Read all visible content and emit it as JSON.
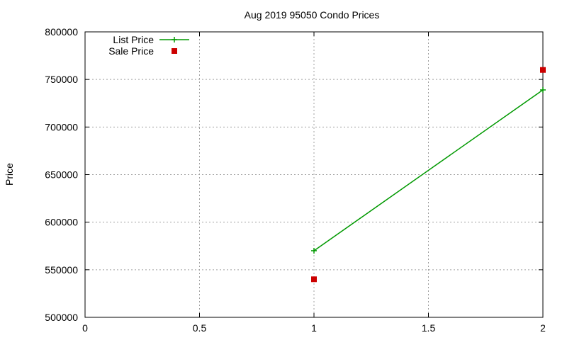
{
  "chart_data": {
    "type": "line",
    "title": "Aug 2019 95050 Condo Prices",
    "xlabel": "",
    "ylabel": "Price",
    "xlim": [
      0,
      2
    ],
    "ylim": [
      500000,
      800000
    ],
    "x_ticks": [
      0,
      0.5,
      1,
      1.5,
      2
    ],
    "x_tick_labels": [
      "0",
      "0.5",
      "1",
      "1.5",
      "2"
    ],
    "y_ticks": [
      500000,
      550000,
      600000,
      650000,
      700000,
      750000,
      800000
    ],
    "y_tick_labels": [
      "500000",
      "550000",
      "600000",
      "650000",
      "700000",
      "750000",
      "800000"
    ],
    "grid": true,
    "legend_position": "top-left",
    "series": [
      {
        "name": "List Price",
        "style": "linespoints",
        "marker": "plus",
        "color": "#009900",
        "x": [
          1,
          2
        ],
        "y": [
          570000,
          739000
        ]
      },
      {
        "name": "Sale Price",
        "style": "points",
        "marker": "square",
        "color": "#cc0000",
        "x": [
          1,
          2
        ],
        "y": [
          540000,
          760000
        ]
      }
    ]
  }
}
